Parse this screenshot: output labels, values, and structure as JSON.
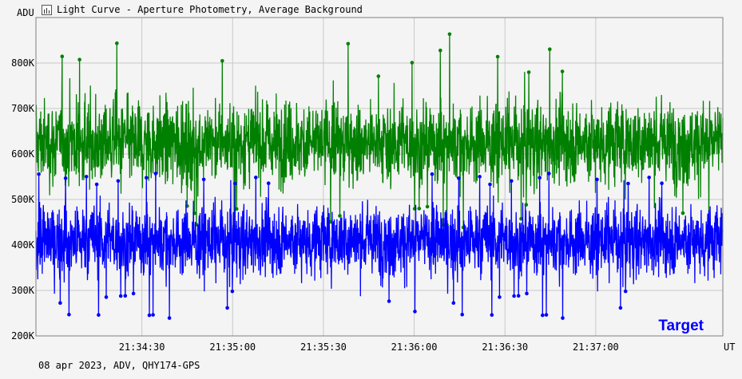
{
  "window": {
    "title": "Light Curve - Aperture Photometry, Average Background",
    "icon": "chart-window-icon"
  },
  "footer": {
    "info": "08 apr 2023, ADV, QHY174-GPS"
  },
  "chart_data": {
    "type": "scatter",
    "title": "Light Curve - Aperture Photometry, Average Background",
    "xlabel": "UT",
    "ylabel": "ADU",
    "ylim": [
      200000,
      900000
    ],
    "y_ticks": [
      {
        "value": 200000,
        "label": "200K"
      },
      {
        "value": 300000,
        "label": "300K"
      },
      {
        "value": 400000,
        "label": "400K"
      },
      {
        "value": 500000,
        "label": "500K"
      },
      {
        "value": 600000,
        "label": "600K"
      },
      {
        "value": 700000,
        "label": "700K"
      },
      {
        "value": 800000,
        "label": "800K"
      }
    ],
    "xlim": [
      "21:33:55",
      "21:37:42"
    ],
    "x_ticks": [
      "21:34:30",
      "21:35:00",
      "21:35:30",
      "21:36:00",
      "21:36:30",
      "21:37:00"
    ],
    "grid": true,
    "legend": {
      "position": "bottom-right",
      "entries": [
        "Target"
      ]
    },
    "series": [
      {
        "name": "Target",
        "color": "#0000ff",
        "mean": 410000,
        "typical_min": 300000,
        "typical_max": 530000,
        "extreme_min": 235000,
        "extreme_max": 560000
      },
      {
        "color": "#008000",
        "mean": 625000,
        "typical_min": 490000,
        "typical_max": 760000,
        "extreme_min": 435000,
        "extreme_max": 875000
      }
    ]
  }
}
